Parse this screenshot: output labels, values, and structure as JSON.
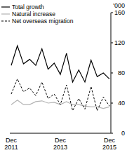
{
  "chart_data": {
    "type": "line",
    "y_label": "'000",
    "categories": [
      "Dec 2011",
      null,
      null,
      null,
      null,
      null,
      null,
      null,
      "Dec 2013",
      null,
      null,
      null,
      null,
      null,
      null,
      null,
      "Dec 2015"
    ],
    "series": [
      {
        "name": "Total growth",
        "color": "#000000",
        "line_style": "solid",
        "values": [
          90,
          116,
          92,
          98,
          90,
          112,
          85,
          93,
          78,
          106,
          68,
          84,
          68,
          97,
          75,
          80,
          72
        ]
      },
      {
        "name": "Natural increase",
        "color": "#b3b3b3",
        "line_style": "solid",
        "values": [
          38,
          44,
          38,
          38,
          42,
          43,
          40,
          41,
          38,
          42,
          38,
          38,
          36,
          35,
          35,
          33,
          35
        ]
      },
      {
        "name": "Net overseas migration",
        "color": "#000000",
        "line_style": "dashed",
        "values": [
          52,
          72,
          55,
          60,
          50,
          68,
          46,
          52,
          38,
          64,
          30,
          46,
          32,
          62,
          30,
          48,
          36
        ]
      }
    ],
    "ylim": [
      0,
      160
    ],
    "yticks": [
      0,
      40,
      80,
      120,
      160
    ],
    "legend": "top-left",
    "grid": false
  }
}
